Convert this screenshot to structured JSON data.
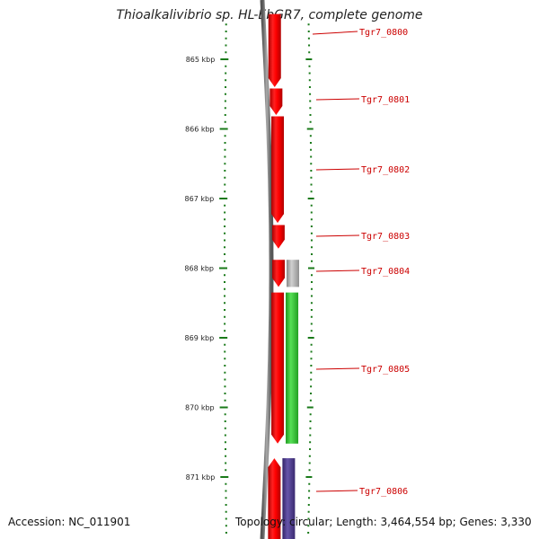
{
  "title": "Thioalkalivibrio sp. HL-EbGR7, complete genome",
  "footer": {
    "accession": "Accession: NC_011901",
    "topology": "Topology: circular; Length: 3,464,554 bp; Genes: 3,330"
  },
  "kbp_labels": [
    "865 kbp",
    "866 kbp",
    "867 kbp",
    "868 kbp",
    "869 kbp",
    "870 kbp",
    "871 kbp"
  ],
  "genes": [
    {
      "name": "Tgr7_0800",
      "start_kbp": 864.35,
      "end_kbp": 865.4,
      "strand": "-",
      "cog": "none"
    },
    {
      "name": "Tgr7_0801",
      "start_kbp": 865.42,
      "end_kbp": 865.8,
      "strand": "-",
      "cog": "none"
    },
    {
      "name": "Tgr7_0802",
      "start_kbp": 865.82,
      "end_kbp": 867.35,
      "strand": "-",
      "cog": "none"
    },
    {
      "name": "Tgr7_0803",
      "start_kbp": 867.38,
      "end_kbp": 867.72,
      "strand": "-",
      "cog": "none"
    },
    {
      "name": "Tgr7_0804",
      "start_kbp": 867.88,
      "end_kbp": 868.27,
      "strand": "-",
      "cog": "gray"
    },
    {
      "name": "Tgr7_0805",
      "start_kbp": 868.35,
      "end_kbp": 870.52,
      "strand": "-",
      "cog": "green"
    },
    {
      "name": "Tgr7_0806",
      "start_kbp": 870.73,
      "end_kbp": 871.9,
      "strand": "+",
      "cog": "purple"
    }
  ],
  "colors": {
    "cds": "#ff0000",
    "gray": "#b0b0b0",
    "green": "#33cc33",
    "purple": "#554499",
    "backbone": "#777777",
    "ticks": "#1a7a1a",
    "label": "#cc0000"
  }
}
